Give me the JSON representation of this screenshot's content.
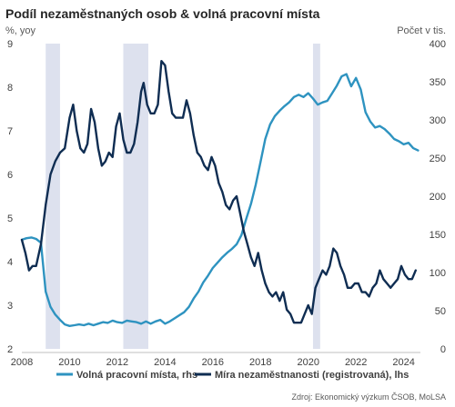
{
  "chart_data": {
    "type": "line",
    "title": "Podíl nezaměstnaných osob & volná pracovní místa",
    "left_unit": "%, yoy",
    "right_unit": "Počet v tis.",
    "source": "Zdroj: Ekonomický výzkum ČSOB, MoLSA",
    "x_axis": {
      "ticks": [
        "2008",
        "2010",
        "2012",
        "2014",
        "2016",
        "2018",
        "2020",
        "2022",
        "2024"
      ],
      "range": [
        2008,
        2024.7
      ]
    },
    "y_left": {
      "range": [
        2,
        9
      ],
      "ticks": [
        "2",
        "3",
        "4",
        "5",
        "6",
        "7",
        "8",
        "9"
      ]
    },
    "y_right": {
      "range": [
        0,
        400
      ],
      "ticks": [
        "0",
        "50",
        "100",
        "150",
        "200",
        "250",
        "300",
        "350",
        "400"
      ]
    },
    "recession_shading": [
      [
        2009.0,
        2009.6
      ],
      [
        2012.25,
        2013.3
      ],
      [
        2020.2,
        2020.5
      ]
    ],
    "series": [
      {
        "name": "Volná pracovní místa, rhs",
        "axis": "right",
        "color": "#2e93c0",
        "points": [
          [
            2008.0,
            143
          ],
          [
            2008.2,
            145
          ],
          [
            2008.4,
            146
          ],
          [
            2008.6,
            144
          ],
          [
            2008.8,
            139
          ],
          [
            2009.0,
            75
          ],
          [
            2009.2,
            55
          ],
          [
            2009.4,
            45
          ],
          [
            2009.6,
            38
          ],
          [
            2009.8,
            32
          ],
          [
            2010.0,
            30
          ],
          [
            2010.2,
            31
          ],
          [
            2010.4,
            32
          ],
          [
            2010.6,
            31
          ],
          [
            2010.8,
            33
          ],
          [
            2011.0,
            31
          ],
          [
            2011.2,
            33
          ],
          [
            2011.4,
            35
          ],
          [
            2011.6,
            34
          ],
          [
            2011.8,
            37
          ],
          [
            2012.0,
            35
          ],
          [
            2012.2,
            34
          ],
          [
            2012.4,
            37
          ],
          [
            2012.6,
            36
          ],
          [
            2012.8,
            35
          ],
          [
            2013.0,
            33
          ],
          [
            2013.2,
            36
          ],
          [
            2013.4,
            33
          ],
          [
            2013.6,
            36
          ],
          [
            2013.8,
            38
          ],
          [
            2014.0,
            33
          ],
          [
            2014.2,
            36
          ],
          [
            2014.4,
            40
          ],
          [
            2014.6,
            44
          ],
          [
            2014.8,
            48
          ],
          [
            2015.0,
            55
          ],
          [
            2015.2,
            66
          ],
          [
            2015.4,
            75
          ],
          [
            2015.6,
            87
          ],
          [
            2015.8,
            96
          ],
          [
            2016.0,
            106
          ],
          [
            2016.2,
            113
          ],
          [
            2016.4,
            120
          ],
          [
            2016.6,
            126
          ],
          [
            2016.8,
            131
          ],
          [
            2017.0,
            137
          ],
          [
            2017.2,
            149
          ],
          [
            2017.4,
            170
          ],
          [
            2017.6,
            190
          ],
          [
            2017.8,
            215
          ],
          [
            2018.0,
            245
          ],
          [
            2018.2,
            275
          ],
          [
            2018.4,
            294
          ],
          [
            2018.6,
            305
          ],
          [
            2018.8,
            312
          ],
          [
            2019.0,
            318
          ],
          [
            2019.2,
            323
          ],
          [
            2019.4,
            330
          ],
          [
            2019.6,
            333
          ],
          [
            2019.8,
            330
          ],
          [
            2020.0,
            335
          ],
          [
            2020.2,
            328
          ],
          [
            2020.4,
            320
          ],
          [
            2020.6,
            323
          ],
          [
            2020.8,
            325
          ],
          [
            2021.0,
            335
          ],
          [
            2021.2,
            345
          ],
          [
            2021.4,
            357
          ],
          [
            2021.6,
            360
          ],
          [
            2021.8,
            344
          ],
          [
            2022.0,
            355
          ],
          [
            2022.2,
            340
          ],
          [
            2022.4,
            310
          ],
          [
            2022.6,
            298
          ],
          [
            2022.8,
            290
          ],
          [
            2023.0,
            292
          ],
          [
            2023.2,
            288
          ],
          [
            2023.4,
            282
          ],
          [
            2023.6,
            275
          ],
          [
            2023.8,
            272
          ],
          [
            2024.0,
            268
          ],
          [
            2024.2,
            270
          ],
          [
            2024.4,
            263
          ],
          [
            2024.6,
            260
          ]
        ]
      },
      {
        "name": "Míra nezaměstnanosti (registrovaná), lhs",
        "axis": "left",
        "color": "#0f2d52",
        "points": [
          [
            2008.0,
            4.5
          ],
          [
            2008.15,
            4.2
          ],
          [
            2008.3,
            3.8
          ],
          [
            2008.45,
            3.9
          ],
          [
            2008.6,
            3.9
          ],
          [
            2008.8,
            4.4
          ],
          [
            2009.0,
            5.3
          ],
          [
            2009.2,
            6.0
          ],
          [
            2009.4,
            6.3
          ],
          [
            2009.6,
            6.5
          ],
          [
            2009.8,
            6.6
          ],
          [
            2010.0,
            7.3
          ],
          [
            2010.15,
            7.6
          ],
          [
            2010.3,
            7.0
          ],
          [
            2010.45,
            6.6
          ],
          [
            2010.6,
            6.5
          ],
          [
            2010.75,
            6.7
          ],
          [
            2010.9,
            7.5
          ],
          [
            2011.05,
            7.2
          ],
          [
            2011.2,
            6.6
          ],
          [
            2011.35,
            6.2
          ],
          [
            2011.5,
            6.3
          ],
          [
            2011.65,
            6.5
          ],
          [
            2011.8,
            6.4
          ],
          [
            2011.95,
            7.1
          ],
          [
            2012.1,
            7.4
          ],
          [
            2012.25,
            6.8
          ],
          [
            2012.4,
            6.5
          ],
          [
            2012.55,
            6.5
          ],
          [
            2012.7,
            6.7
          ],
          [
            2012.85,
            7.2
          ],
          [
            2013.0,
            7.9
          ],
          [
            2013.1,
            8.1
          ],
          [
            2013.25,
            7.6
          ],
          [
            2013.4,
            7.4
          ],
          [
            2013.55,
            7.4
          ],
          [
            2013.7,
            7.6
          ],
          [
            2013.85,
            8.6
          ],
          [
            2014.0,
            8.5
          ],
          [
            2014.15,
            7.9
          ],
          [
            2014.3,
            7.4
          ],
          [
            2014.45,
            7.3
          ],
          [
            2014.6,
            7.3
          ],
          [
            2014.75,
            7.3
          ],
          [
            2014.9,
            7.7
          ],
          [
            2015.05,
            7.4
          ],
          [
            2015.2,
            6.9
          ],
          [
            2015.35,
            6.5
          ],
          [
            2015.5,
            6.4
          ],
          [
            2015.65,
            6.2
          ],
          [
            2015.8,
            6.1
          ],
          [
            2015.95,
            6.4
          ],
          [
            2016.1,
            6.2
          ],
          [
            2016.25,
            5.8
          ],
          [
            2016.4,
            5.6
          ],
          [
            2016.55,
            5.3
          ],
          [
            2016.7,
            5.2
          ],
          [
            2016.85,
            5.4
          ],
          [
            2017.0,
            5.5
          ],
          [
            2017.15,
            5.1
          ],
          [
            2017.3,
            4.7
          ],
          [
            2017.45,
            4.4
          ],
          [
            2017.6,
            4.1
          ],
          [
            2017.75,
            3.9
          ],
          [
            2017.9,
            4.2
          ],
          [
            2018.05,
            3.8
          ],
          [
            2018.2,
            3.5
          ],
          [
            2018.35,
            3.3
          ],
          [
            2018.5,
            3.2
          ],
          [
            2018.65,
            3.3
          ],
          [
            2018.8,
            3.1
          ],
          [
            2018.95,
            3.3
          ],
          [
            2019.1,
            2.9
          ],
          [
            2019.25,
            2.8
          ],
          [
            2019.4,
            2.6
          ],
          [
            2019.55,
            2.6
          ],
          [
            2019.7,
            2.6
          ],
          [
            2019.85,
            2.8
          ],
          [
            2020.0,
            3.0
          ],
          [
            2020.15,
            2.8
          ],
          [
            2020.3,
            3.4
          ],
          [
            2020.45,
            3.6
          ],
          [
            2020.6,
            3.8
          ],
          [
            2020.75,
            3.7
          ],
          [
            2020.9,
            3.9
          ],
          [
            2021.05,
            4.3
          ],
          [
            2021.2,
            4.2
          ],
          [
            2021.35,
            3.9
          ],
          [
            2021.5,
            3.7
          ],
          [
            2021.65,
            3.4
          ],
          [
            2021.8,
            3.4
          ],
          [
            2021.95,
            3.5
          ],
          [
            2022.1,
            3.5
          ],
          [
            2022.25,
            3.3
          ],
          [
            2022.4,
            3.3
          ],
          [
            2022.55,
            3.2
          ],
          [
            2022.7,
            3.4
          ],
          [
            2022.85,
            3.5
          ],
          [
            2023.0,
            3.8
          ],
          [
            2023.15,
            3.6
          ],
          [
            2023.3,
            3.5
          ],
          [
            2023.45,
            3.4
          ],
          [
            2023.6,
            3.5
          ],
          [
            2023.75,
            3.6
          ],
          [
            2023.9,
            3.9
          ],
          [
            2024.05,
            3.7
          ],
          [
            2024.2,
            3.6
          ],
          [
            2024.35,
            3.6
          ],
          [
            2024.5,
            3.8
          ]
        ]
      }
    ]
  }
}
